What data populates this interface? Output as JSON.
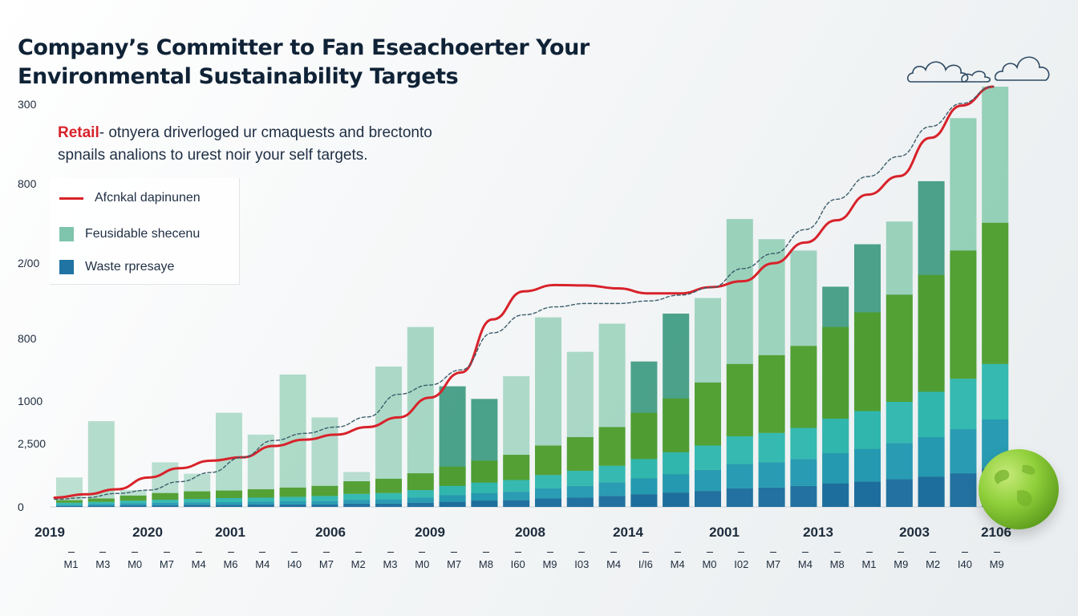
{
  "title": {
    "line1": "Company’s Committer to Fan Eseachoerter Your",
    "line2": "Environmental Sustainability Targets"
  },
  "subtitle": {
    "red": "Retail",
    "line1_rest": "- otnyera driverloged ur cmaquests and brectonto",
    "line2": "spnails analions to urest noir your self targets."
  },
  "legend": [
    {
      "label": "Afcnkal dapinunen",
      "symbol": "line",
      "color": "#d8222a"
    },
    {
      "label": "Feusidable shecenu",
      "symbol": "box",
      "color": "#7fc4ad"
    },
    {
      "label": "Waste rpresaye",
      "symbol": "box",
      "color": "#1f74a3"
    }
  ],
  "icons": [
    "cloud-icon",
    "cloud-icon",
    "globe-icon"
  ],
  "chart_data": {
    "type": "bar",
    "y_tick_labels": [
      "300",
      "800",
      "2/00",
      "800",
      "1000",
      "2,500",
      "0"
    ],
    "x_year_labels": [
      "2019",
      "2020",
      "2001",
      "2006",
      "2009",
      "2008",
      "2014",
      "2001",
      "2013",
      "2003",
      "2106"
    ],
    "x_month_labels": [
      "M1",
      "M3",
      "M0",
      "M7",
      "M4",
      "M6",
      "M4",
      "I40",
      "M7",
      "M2",
      "M3",
      "M0",
      "M7",
      "M8",
      "I60",
      "M9",
      "I03",
      "M4",
      "I/I6",
      "M4",
      "M0",
      "I02",
      "M7",
      "M4",
      "M8",
      "M1",
      "M9",
      "M2",
      "I40",
      "M9"
    ],
    "value_scale": "fraction of plot height (0 = baseline, 1 = top gridline)",
    "bars": [
      {
        "background": 0.07,
        "stack": [
          0.006,
          0.005,
          0.003,
          0.002,
          0
        ]
      },
      {
        "background": 0.204,
        "stack": [
          0.008,
          0.005,
          0.004,
          0.003,
          0
        ]
      },
      {
        "background": 0.04,
        "stack": [
          0.012,
          0.006,
          0.005,
          0.004,
          0
        ]
      },
      {
        "background": 0.106,
        "stack": [
          0.016,
          0.007,
          0.006,
          0.004,
          0
        ]
      },
      {
        "background": 0.079,
        "stack": [
          0.018,
          0.008,
          0.006,
          0.005,
          0
        ]
      },
      {
        "background": 0.224,
        "stack": [
          0.018,
          0.009,
          0.007,
          0.005,
          0
        ]
      },
      {
        "background": 0.172,
        "stack": [
          0.02,
          0.009,
          0.007,
          0.006,
          0
        ]
      },
      {
        "background": 0.315,
        "stack": [
          0.022,
          0.01,
          0.008,
          0.006,
          0
        ]
      },
      {
        "background": 0.213,
        "stack": [
          0.024,
          0.012,
          0.008,
          0.006,
          0
        ]
      },
      {
        "background": 0.083,
        "stack": [
          0.03,
          0.014,
          0.009,
          0.008,
          0
        ]
      },
      {
        "background": 0.334,
        "stack": [
          0.034,
          0.015,
          0.01,
          0.008,
          0
        ]
      },
      {
        "background": 0.428,
        "stack": [
          0.04,
          0.018,
          0.012,
          0.01,
          0
        ]
      },
      {
        "background": 0.287,
        "stack": [
          0.046,
          0.022,
          0.016,
          0.012,
          0
        ]
      },
      {
        "background": 0.257,
        "stack": [
          0.052,
          0.025,
          0.018,
          0.015,
          0
        ]
      },
      {
        "background": 0.311,
        "stack": [
          0.06,
          0.028,
          0.02,
          0.016,
          0
        ]
      },
      {
        "background": 0.451,
        "stack": [
          0.07,
          0.032,
          0.024,
          0.02,
          0
        ]
      },
      {
        "background": 0.369,
        "stack": [
          0.08,
          0.036,
          0.028,
          0.022,
          0
        ]
      },
      {
        "background": 0.436,
        "stack": [
          0.092,
          0.04,
          0.032,
          0.026,
          0
        ]
      },
      {
        "background": 0.346,
        "stack": [
          0.11,
          0.046,
          0.038,
          0.03,
          0
        ]
      },
      {
        "background": 0.46,
        "stack": [
          0.128,
          0.052,
          0.044,
          0.034,
          0
        ]
      },
      {
        "background": 0.497,
        "stack": [
          0.15,
          0.058,
          0.05,
          0.038,
          0
        ]
      },
      {
        "background": 0.685,
        "stack": [
          0.172,
          0.066,
          0.058,
          0.044,
          0
        ]
      },
      {
        "background": 0.637,
        "stack": [
          0.185,
          0.07,
          0.06,
          0.046,
          0
        ]
      },
      {
        "background": 0.61,
        "stack": [
          0.195,
          0.074,
          0.064,
          0.05,
          0
        ]
      },
      {
        "background": 0.524,
        "stack": [
          0.218,
          0.082,
          0.072,
          0.056,
          0
        ]
      },
      {
        "background": 0.625,
        "stack": [
          0.235,
          0.09,
          0.078,
          0.06,
          0
        ]
      },
      {
        "background": 0.679,
        "stack": [
          0.255,
          0.098,
          0.086,
          0.066,
          0
        ]
      },
      {
        "background": 0.775,
        "stack": [
          0.278,
          0.108,
          0.094,
          0.072,
          0
        ]
      },
      {
        "background": 0.925,
        "stack": [
          0.305,
          0.12,
          0.105,
          0.08,
          0
        ]
      },
      {
        "background": 1.0,
        "stack": [
          0.336,
          0.132,
          0.116,
          0.092,
          0
        ]
      }
    ],
    "line_series": [
      {
        "color": "#d8222a",
        "dashed": false,
        "points": [
          0.022,
          0.03,
          0.042,
          0.07,
          0.092,
          0.11,
          0.118,
          0.145,
          0.16,
          0.172,
          0.19,
          0.213,
          0.26,
          0.32,
          0.446,
          0.513,
          0.528,
          0.527,
          0.52,
          0.508,
          0.508,
          0.523,
          0.537,
          0.58,
          0.629,
          0.682,
          0.743,
          0.787,
          0.878,
          0.955,
          1.0
        ]
      },
      {
        "color": "#3b5d6a",
        "dashed": true,
        "points": [
          0.018,
          0.022,
          0.032,
          0.04,
          0.06,
          0.082,
          0.118,
          0.158,
          0.175,
          0.19,
          0.214,
          0.268,
          0.29,
          0.326,
          0.414,
          0.457,
          0.476,
          0.484,
          0.484,
          0.49,
          0.504,
          0.522,
          0.567,
          0.603,
          0.66,
          0.732,
          0.786,
          0.834,
          0.905,
          0.96,
          1.0
        ]
      }
    ],
    "colors": {
      "background_bar": "#8fcdb4",
      "dark_bar": "#3d9a80",
      "stack": [
        "#4f9d2d",
        "#2fb7b0",
        "#2399b2",
        "#1b6c9e"
      ]
    }
  }
}
